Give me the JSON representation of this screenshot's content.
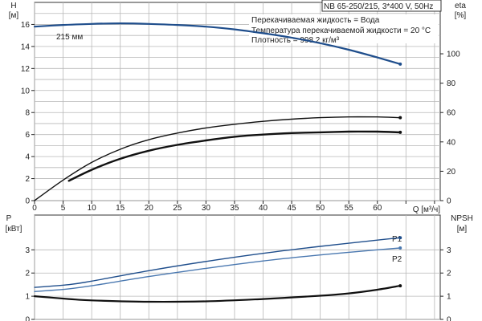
{
  "header": {
    "model": "NB 65-250/215, 3*400 V, 50Hz",
    "info_lines": [
      "Перекачиваемая жидкость = Вода",
      "Температура перекачиваемой жидкости = 20 °C",
      "Плотность = 998.2 кг/м³"
    ]
  },
  "colors": {
    "dark_blue": "#1f4e8c",
    "light_blue": "#4a78b0",
    "black": "#111111"
  },
  "chart_data": [
    {
      "type": "line",
      "name": "head-efficiency",
      "xlabel": "Q [м³/ч]",
      "xlim": [
        0,
        71
      ],
      "xticks": [
        0,
        5,
        10,
        15,
        20,
        25,
        30,
        35,
        40,
        45,
        50,
        55,
        60
      ],
      "y_left": {
        "label_top": "H",
        "label_bottom": "[м]",
        "lim": [
          0,
          18
        ],
        "ticks": [
          0,
          2,
          4,
          6,
          8,
          10,
          12,
          14,
          16
        ]
      },
      "y_right": {
        "label_top": "eta",
        "label_bottom": "[%]",
        "lim": [
          0,
          135
        ],
        "ticks": [
          0,
          20,
          40,
          60,
          80,
          100
        ]
      },
      "grid": true,
      "series": [
        {
          "name": "215 мм",
          "axis": "left",
          "color": "#1f4e8c",
          "x": [
            0,
            5,
            10,
            15,
            20,
            25,
            30,
            35,
            40,
            45,
            50,
            55,
            60,
            64
          ],
          "y": [
            15.8,
            15.95,
            16.05,
            16.1,
            16.05,
            15.95,
            15.8,
            15.55,
            15.2,
            14.8,
            14.3,
            13.7,
            13.0,
            12.4
          ]
        },
        {
          "name": "",
          "axis": "right",
          "color": "#111111",
          "x": [
            0,
            5,
            10,
            15,
            20,
            25,
            30,
            35,
            40,
            45,
            50,
            55,
            60,
            64
          ],
          "y": [
            0,
            14,
            26,
            35,
            41.5,
            46,
            49.5,
            52,
            54,
            55.5,
            56.5,
            57,
            57,
            56.5
          ]
        },
        {
          "name": "",
          "axis": "right",
          "color": "#111111",
          "x": [
            6,
            10,
            15,
            20,
            25,
            30,
            35,
            40,
            45,
            50,
            55,
            60,
            64
          ],
          "y": [
            13.5,
            21,
            28.5,
            34,
            38,
            41,
            43.5,
            45,
            46,
            46.5,
            47,
            47,
            46.5
          ]
        }
      ]
    },
    {
      "type": "line",
      "name": "power-npsh",
      "xlim": [
        0,
        71
      ],
      "y_left": {
        "label_top": "P",
        "label_bottom": "[кВт]",
        "lim": [
          0,
          4.5
        ],
        "ticks": [
          0,
          1,
          2,
          3
        ]
      },
      "y_right": {
        "label_top": "NPSH",
        "label_bottom": "[м]",
        "lim": [
          0,
          4.5
        ],
        "ticks": [
          0,
          1,
          2,
          3
        ]
      },
      "grid": true,
      "series": [
        {
          "name": "P1",
          "axis": "left",
          "color": "#1f4e8c",
          "x": [
            0,
            6,
            10,
            20,
            30,
            40,
            50,
            60,
            64
          ],
          "y": [
            1.38,
            1.5,
            1.65,
            2.1,
            2.5,
            2.85,
            3.15,
            3.42,
            3.52
          ]
        },
        {
          "name": "P2",
          "axis": "left",
          "color": "#4a78b0",
          "x": [
            0,
            6,
            10,
            20,
            30,
            40,
            50,
            60,
            64
          ],
          "y": [
            1.2,
            1.32,
            1.45,
            1.85,
            2.2,
            2.52,
            2.78,
            3.0,
            3.08
          ]
        },
        {
          "name": "",
          "axis": "right",
          "color": "#111111",
          "x": [
            0,
            6,
            10,
            20,
            30,
            40,
            50,
            55,
            60,
            64
          ],
          "y": [
            1.0,
            0.88,
            0.82,
            0.76,
            0.78,
            0.88,
            1.02,
            1.12,
            1.28,
            1.45
          ]
        }
      ]
    }
  ]
}
